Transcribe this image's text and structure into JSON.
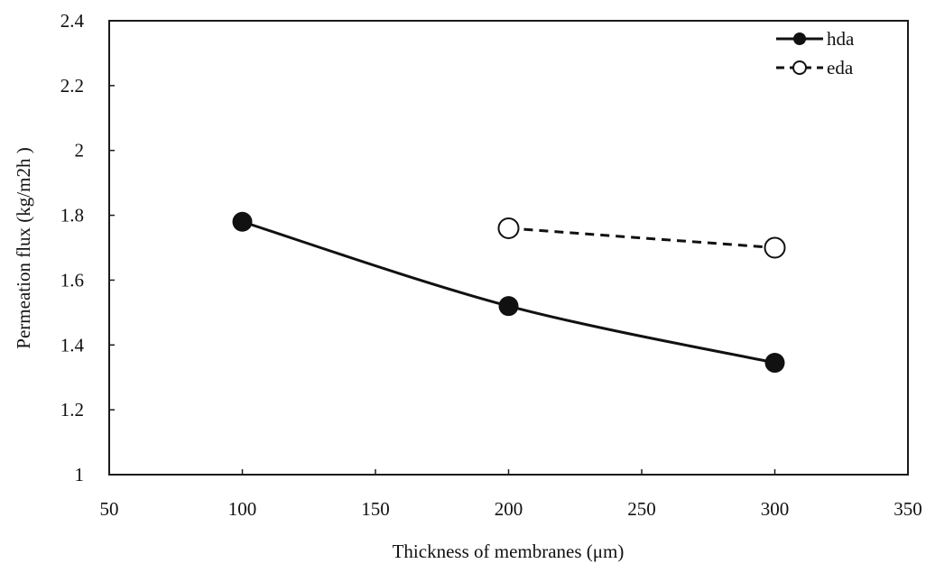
{
  "chart_data": {
    "type": "line",
    "title": "",
    "xlabel": "Thickness of membranes (μm)",
    "ylabel": "Permeation flux (kg/m2h )",
    "xlim": [
      50,
      350
    ],
    "ylim": [
      1,
      2.4
    ],
    "x_ticks": [
      "50",
      "100",
      "150",
      "200",
      "250",
      "300",
      "350"
    ],
    "y_ticks": [
      "1",
      "1.2",
      "1.4",
      "1.6",
      "1.8",
      "2",
      "2.2",
      "2.4"
    ],
    "grid": false,
    "legend_position": "top-right",
    "series": [
      {
        "name": "hda",
        "line_style": "solid",
        "marker": "filled-circle",
        "color": "#111111",
        "x": [
          100,
          200,
          300
        ],
        "y": [
          1.78,
          1.52,
          1.345
        ]
      },
      {
        "name": "eda",
        "line_style": "dashed",
        "marker": "open-circle",
        "color": "#111111",
        "x": [
          200,
          300
        ],
        "y": [
          1.76,
          1.7
        ]
      }
    ]
  }
}
